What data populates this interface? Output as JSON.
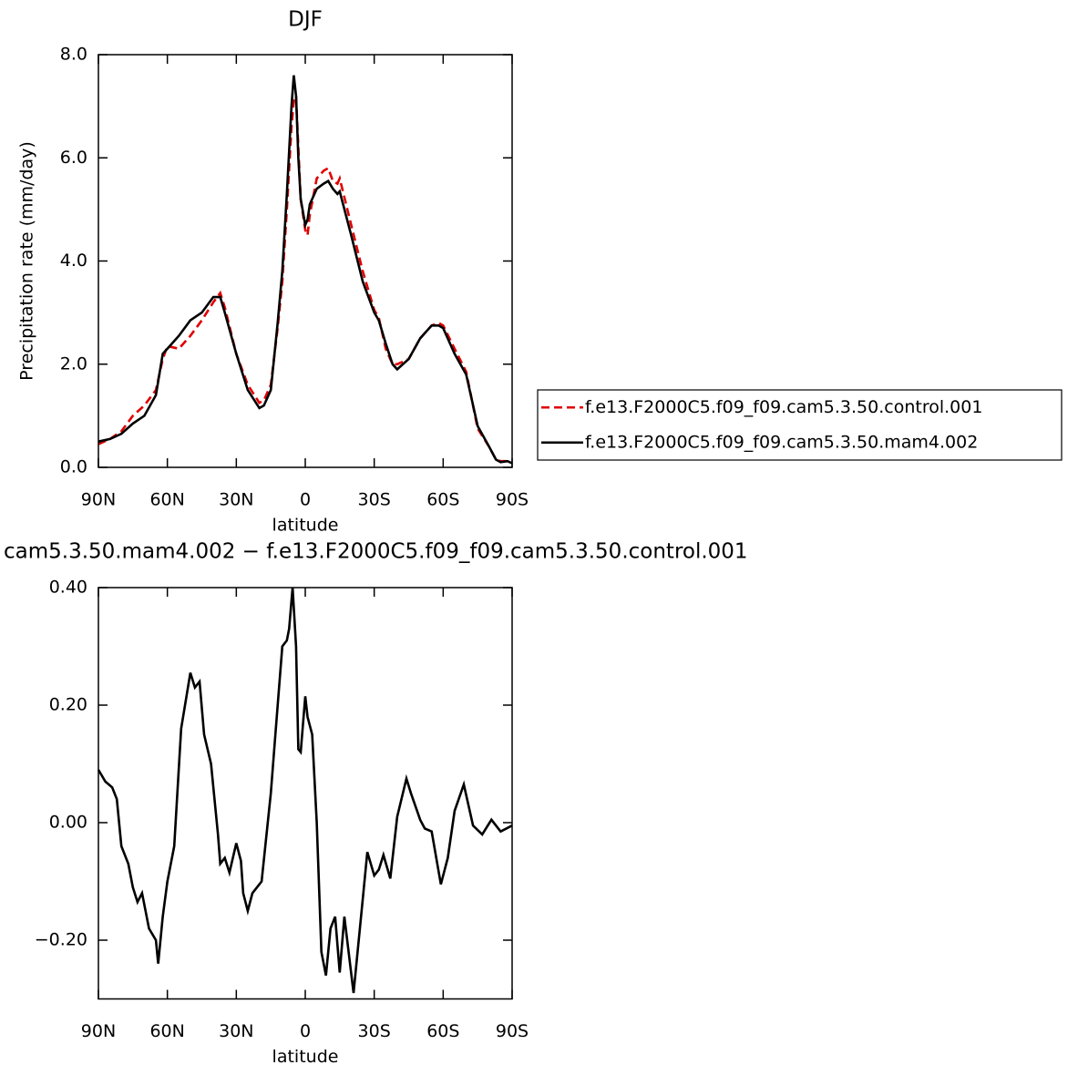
{
  "chart_data": [
    {
      "type": "line",
      "title": "DJF",
      "y_label": "Precipitation rate (mm/day)",
      "x_label": "latitude",
      "xlim": [
        90,
        -90
      ],
      "xticks": [
        {
          "value": 90,
          "label": "90N"
        },
        {
          "value": 60,
          "label": "60N"
        },
        {
          "value": 30,
          "label": "30N"
        },
        0,
        {
          "value": -30,
          "label": "30S"
        },
        {
          "value": -60,
          "label": "60S"
        },
        {
          "value": -90,
          "label": "90S"
        }
      ],
      "ylim": [
        0,
        8
      ],
      "yticks": [
        {
          "value": 0,
          "label": "0.0"
        },
        {
          "value": 2,
          "label": "2.0"
        },
        {
          "value": 4,
          "label": "4.0"
        },
        {
          "value": 6,
          "label": "6.0"
        },
        {
          "value": 8,
          "label": "8.0"
        }
      ],
      "legend": "right",
      "x": [
        90,
        85,
        80,
        75,
        70,
        65,
        62,
        60,
        55,
        50,
        45,
        40,
        37,
        35,
        30,
        25,
        20,
        18,
        15,
        12,
        10,
        8,
        6,
        5,
        4,
        3,
        2,
        0,
        -1,
        -2,
        -5,
        -8,
        -10,
        -12,
        -14,
        -15,
        -20,
        -25,
        -30,
        -32,
        -35,
        -38,
        -40,
        -45,
        -50,
        -55,
        -58,
        -60,
        -65,
        -70,
        -75,
        -80,
        -83,
        -85,
        -88,
        -90
      ],
      "series": [
        {
          "name": "f.e13.F2000C5.f09_f09.cam5.3.50.control.001",
          "color": "#e00000",
          "dash": true,
          "values": [
            0.45,
            0.55,
            0.7,
            1.0,
            1.2,
            1.5,
            2.1,
            2.35,
            2.3,
            2.55,
            2.85,
            3.2,
            3.38,
            3.1,
            2.2,
            1.6,
            1.25,
            1.3,
            1.6,
            2.7,
            3.6,
            5.0,
            6.6,
            7.1,
            7.2,
            6.2,
            5.2,
            4.6,
            4.5,
            4.9,
            5.6,
            5.75,
            5.8,
            5.55,
            5.5,
            5.6,
            4.7,
            3.8,
            3.05,
            2.9,
            2.3,
            2.0,
            2.0,
            2.1,
            2.5,
            2.75,
            2.8,
            2.75,
            2.3,
            1.85,
            0.75,
            0.4,
            0.15,
            0.12,
            0.12,
            0.1
          ]
        },
        {
          "name": "f.e13.F2000C5.f09_f09.cam5.3.50.mam4.002",
          "color": "#000000",
          "dash": false,
          "values": [
            0.5,
            0.55,
            0.65,
            0.85,
            1.0,
            1.4,
            2.2,
            2.3,
            2.55,
            2.85,
            3.0,
            3.3,
            3.3,
            3.0,
            2.2,
            1.5,
            1.15,
            1.2,
            1.5,
            2.8,
            3.8,
            5.3,
            7.0,
            7.6,
            7.2,
            6.0,
            5.2,
            4.7,
            4.8,
            5.1,
            5.4,
            5.5,
            5.55,
            5.4,
            5.3,
            5.35,
            4.5,
            3.6,
            3.0,
            2.85,
            2.4,
            2.0,
            1.9,
            2.1,
            2.5,
            2.75,
            2.75,
            2.7,
            2.2,
            1.8,
            0.8,
            0.4,
            0.15,
            0.1,
            0.12,
            0.08
          ]
        }
      ]
    },
    {
      "type": "line",
      "title": "cam5.3.50.mam4.002 − f.e13.F2000C5.f09_f09.cam5.3.50.control.001",
      "x_label": "latitude",
      "xlim": [
        90,
        -90
      ],
      "xticks": [
        {
          "value": 90,
          "label": "90N"
        },
        {
          "value": 60,
          "label": "60N"
        },
        {
          "value": 30,
          "label": "30N"
        },
        0,
        {
          "value": -30,
          "label": "30S"
        },
        {
          "value": -60,
          "label": "60S"
        },
        {
          "value": -90,
          "label": "90S"
        }
      ],
      "ylim": [
        -0.3,
        0.4
      ],
      "yticks": [
        {
          "value": 0.4,
          "label": "0.40"
        },
        {
          "value": 0.2,
          "label": "0.20"
        },
        {
          "value": 0,
          "label": "0.00"
        },
        {
          "value": -0.2,
          "label": "−0.20"
        }
      ],
      "x": [
        90,
        87,
        84,
        82,
        80,
        77,
        75,
        73,
        71,
        68,
        65,
        64,
        62,
        60,
        57,
        54,
        50,
        48,
        46,
        44,
        41,
        38,
        37,
        35,
        33,
        30,
        28,
        27,
        25,
        23,
        19,
        15,
        13,
        10,
        8,
        7,
        5.5,
        4,
        3,
        2,
        0,
        -1,
        -3,
        -5,
        -7,
        -9,
        -11,
        -13,
        -15,
        -17,
        -21,
        -25,
        -27,
        -30,
        -32,
        -34,
        -37,
        -40,
        -44,
        -46,
        -50,
        -52,
        -55,
        -59,
        -62,
        -65,
        -69,
        -73,
        -77,
        -81,
        -85,
        -90
      ],
      "series": [
        {
          "color": "#000000",
          "dash": false,
          "values": [
            0.09,
            0.07,
            0.06,
            0.04,
            -0.04,
            -0.07,
            -0.11,
            -0.135,
            -0.12,
            -0.18,
            -0.2,
            -0.24,
            -0.16,
            -0.1,
            -0.04,
            0.16,
            0.255,
            0.23,
            0.24,
            0.15,
            0.1,
            -0.02,
            -0.07,
            -0.06,
            -0.085,
            -0.035,
            -0.065,
            -0.12,
            -0.15,
            -0.12,
            -0.1,
            0.05,
            0.15,
            0.3,
            0.31,
            0.33,
            0.4,
            0.3,
            0.125,
            0.12,
            0.215,
            0.18,
            0.15,
            0.0,
            -0.22,
            -0.26,
            -0.18,
            -0.16,
            -0.255,
            -0.16,
            -0.29,
            -0.13,
            -0.05,
            -0.09,
            -0.08,
            -0.055,
            -0.095,
            0.01,
            0.075,
            0.05,
            0.005,
            -0.01,
            -0.015,
            -0.105,
            -0.06,
            0.02,
            0.065,
            -0.005,
            -0.02,
            0.005,
            -0.015,
            -0.005
          ]
        }
      ]
    }
  ]
}
